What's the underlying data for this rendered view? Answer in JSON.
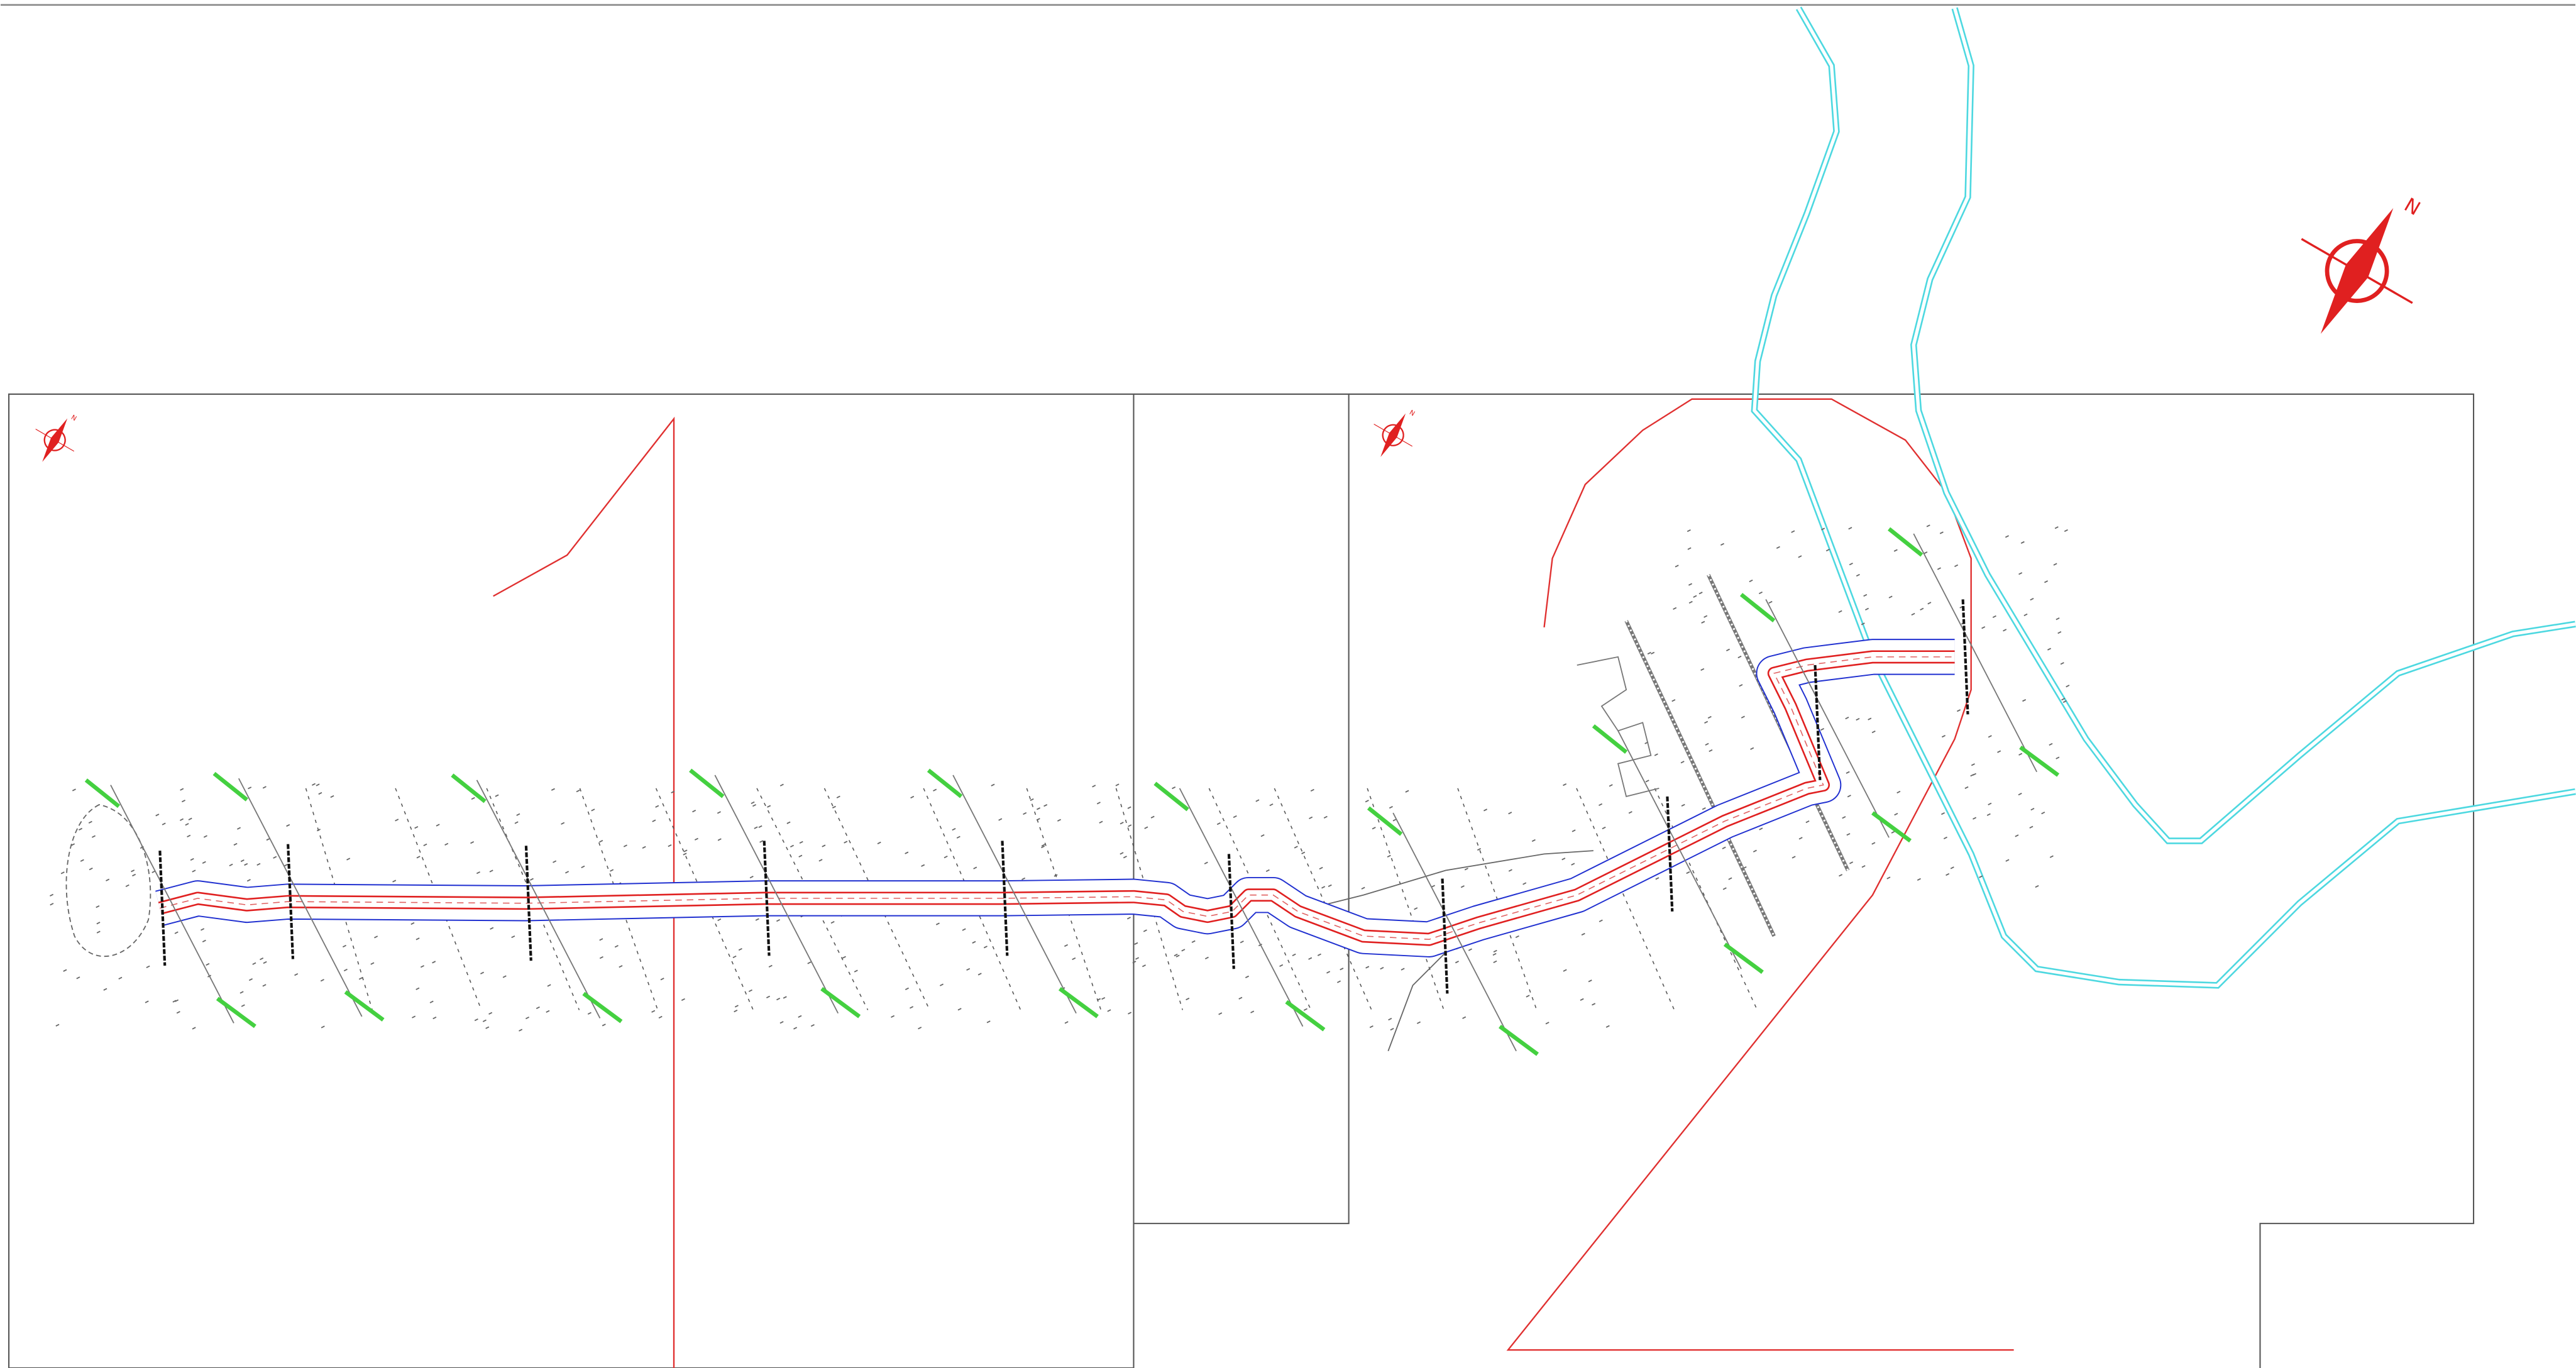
{
  "north_arrows": [
    {
      "label": "N"
    },
    {
      "label": "N"
    },
    {
      "label": "N"
    }
  ]
}
